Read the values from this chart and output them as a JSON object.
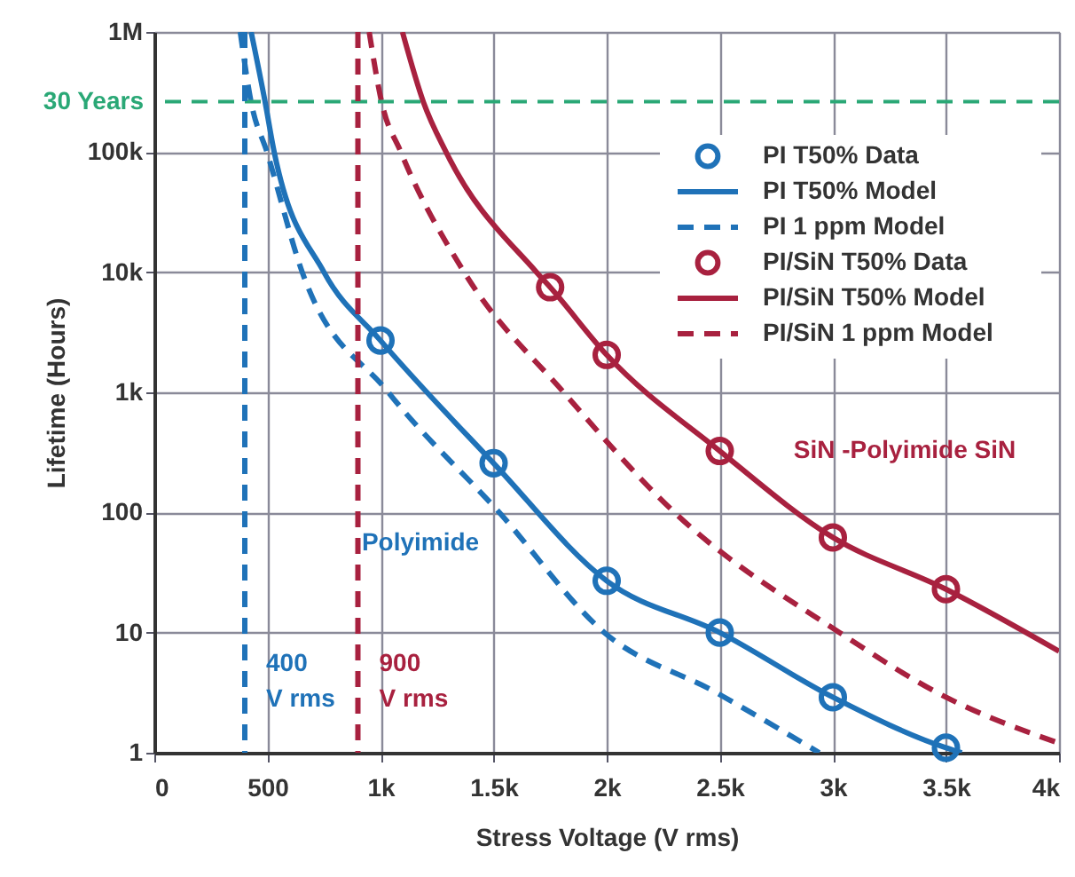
{
  "chart_data": {
    "type": "line",
    "xlabel": "Stress Voltage (V rms)",
    "ylabel": "Lifetime (Hours)",
    "xlim": [
      0,
      4000
    ],
    "ylim": [
      1,
      1000000
    ],
    "log": "y",
    "grid": true,
    "legend": "top right",
    "xticks": [
      0,
      500,
      {
        "value": 1000,
        "label": "1k"
      },
      {
        "value": 1500,
        "label": "1.5k"
      },
      {
        "value": 2000,
        "label": "2k"
      },
      {
        "value": 2500,
        "label": "2.5k"
      },
      {
        "value": 3000,
        "label": "3k"
      },
      {
        "value": 3500,
        "label": "3.5k"
      },
      {
        "value": 4000,
        "label": "4k"
      }
    ],
    "yticks": [
      1,
      10,
      100,
      {
        "value": 1000,
        "label": "1k"
      },
      {
        "value": 10000,
        "label": "10k"
      },
      {
        "value": 100000,
        "label": "100k"
      },
      {
        "value": 1000000,
        "label": "1M"
      }
    ],
    "series": [
      {
        "name": "PI T50% Data",
        "type": "scatter",
        "marker": "circle",
        "color": "#1f72b8",
        "x": [
          1000,
          1500,
          2000,
          2500,
          3000,
          3500
        ],
        "values": [
          2700,
          257,
          27,
          10,
          2.9,
          1.1
        ]
      },
      {
        "name": "PI T50% Model",
        "line_style": "solid",
        "color": "#1f72b8",
        "x": [
          428,
          490,
          530,
          750,
          1000,
          1500,
          2000,
          2500,
          3000,
          3500,
          3570
        ],
        "values": [
          1000000,
          260000,
          100000,
          10000,
          2700,
          257,
          27,
          10,
          2.9,
          1.1,
          1
        ]
      },
      {
        "name": "PI 1 ppm Model",
        "line_style": "dashed",
        "color": "#1f72b8",
        "x": [
          380,
          428,
          498,
          654,
          1035,
          1525,
          1990,
          2480,
          2940
        ],
        "values": [
          1000000,
          260000,
          100000,
          10000,
          1000,
          100,
          10,
          3.2,
          1
        ]
      },
      {
        "name": "PI/SiN T50% Data",
        "type": "scatter",
        "marker": "circle",
        "color": "#a8213f",
        "x": [
          1750,
          2000,
          2500,
          3000,
          3500
        ],
        "values": [
          7500,
          2050,
          325,
          62,
          23
        ]
      },
      {
        "name": "PI/SiN T50% Model",
        "line_style": "solid",
        "color": "#a8213f",
        "x": [
          1097,
          1190,
          1290,
          1690,
          1750,
          2000,
          2500,
          3000,
          3500,
          4000
        ],
        "values": [
          1000000,
          260000,
          100000,
          10000,
          7500,
          2050,
          325,
          62,
          23,
          7
        ]
      },
      {
        "name": "PI/SiN 1 ppm Model",
        "line_style": "dashed",
        "color": "#a8213f",
        "x": [
          950,
          1005,
          1090,
          1370,
          1810,
          2300,
          3030,
          3500,
          4000
        ],
        "values": [
          1000000,
          260000,
          100000,
          10000,
          1000,
          100,
          10,
          2.9,
          1.2
        ]
      }
    ],
    "ref_lines": [
      {
        "axis": "y",
        "value": 262800,
        "label": "30 Years",
        "color": "#2aa876",
        "line_style": "dashed"
      },
      {
        "axis": "x",
        "value": 400,
        "label": "400 V rms",
        "color": "#1f72b8",
        "line_style": "dashed"
      },
      {
        "axis": "x",
        "value": 900,
        "label": "900 V rms",
        "color": "#a8213f",
        "line_style": "dashed"
      }
    ],
    "annotations": [
      "Polyimide",
      "SiN -Polyimide SiN"
    ]
  }
}
